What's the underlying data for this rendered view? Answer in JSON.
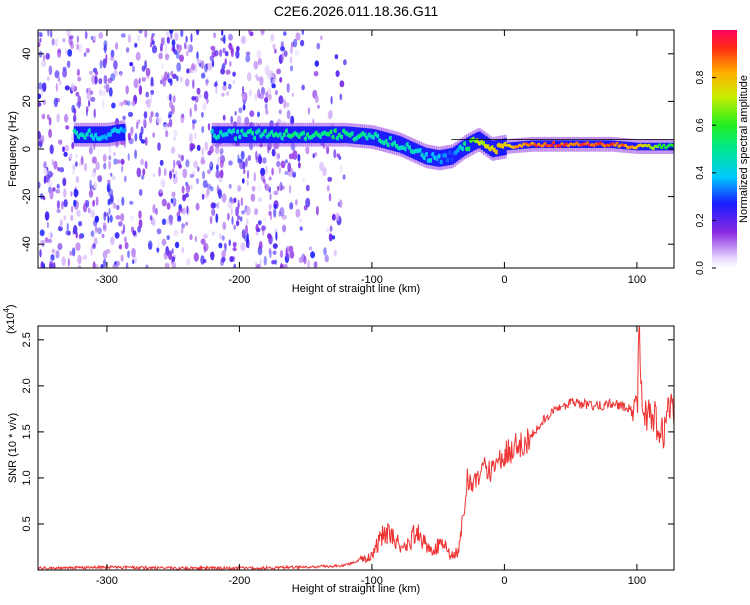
{
  "title": "C2E6.2026.011.18.36.G11",
  "colors": {
    "signal": "#ee3333",
    "sparse": "#8a2be2",
    "frame": "#000000"
  },
  "chart_data": [
    {
      "type": "heatmap",
      "xlabel": "Height of straight line (km)",
      "ylabel": "Frequency (Hz)",
      "xlim": [
        -352,
        128
      ],
      "ylim": [
        -50,
        50
      ],
      "x_ticks": [
        -300,
        -200,
        -100,
        0,
        100
      ],
      "x_tick_labels": [
        "-300",
        "-200",
        "-100",
        "0",
        "100"
      ],
      "y_ticks": [
        -40,
        -20,
        0,
        20,
        40
      ],
      "y_tick_labels": [
        "-40",
        "-20",
        "0",
        "20",
        "40"
      ],
      "colorbar": {
        "label": "Normalized spectral amplitude",
        "range": [
          0,
          1
        ],
        "ticks": [
          0.0,
          0.2,
          0.4,
          0.6,
          0.8
        ],
        "tick_labels": [
          "0.0",
          "0.2",
          "0.4",
          "0.6",
          "0.8"
        ]
      },
      "ridge": {
        "x": [
          -325,
          -300,
          -290,
          -220,
          -200,
          -150,
          -120,
          -100,
          -80,
          -60,
          -50,
          -40,
          -30,
          -20,
          -10,
          0,
          20,
          50,
          80,
          100,
          128
        ],
        "frequency": [
          6,
          6,
          7,
          6,
          6,
          6,
          6,
          5,
          2,
          -3,
          -4,
          -3,
          1,
          4,
          0,
          1,
          2,
          2,
          2,
          1,
          1
        ],
        "amplitude": [
          0.5,
          0.4,
          0.4,
          0.45,
          0.5,
          0.55,
          0.55,
          0.5,
          0.5,
          0.45,
          0.4,
          0.3,
          0.55,
          0.8,
          0.8,
          0.85,
          0.95,
          0.98,
          0.98,
          0.85,
          0.6
        ]
      },
      "noise_region": {
        "x": [
          -352,
          -120
        ],
        "amplitude_range": [
          0,
          0.25
        ]
      }
    },
    {
      "type": "line",
      "xlabel": "Height of straight line (km)",
      "ylabel": "SNR (10 * v/v)",
      "y_multiplier": "(x10",
      "y_multiplier_exp": "4",
      "xlim": [
        -352,
        128
      ],
      "ylim": [
        0,
        2.65
      ],
      "x_ticks": [
        -300,
        -200,
        -100,
        0,
        100
      ],
      "x_tick_labels": [
        "-300",
        "-200",
        "-100",
        "0",
        "100"
      ],
      "y_ticks": [
        0.5,
        1.0,
        1.5,
        2.0,
        2.5
      ],
      "y_tick_labels": [
        "0.5",
        "1.0",
        "1.5",
        "2.0",
        "2.5"
      ],
      "x": [
        -352,
        -300,
        -250,
        -200,
        -150,
        -120,
        -110,
        -100,
        -95,
        -90,
        -85,
        -80,
        -75,
        -70,
        -65,
        -60,
        -55,
        -50,
        -45,
        -40,
        -35,
        -30,
        -28,
        -25,
        -20,
        -15,
        -10,
        -5,
        0,
        10,
        20,
        30,
        40,
        50,
        60,
        70,
        80,
        90,
        95,
        100,
        102,
        105,
        110,
        115,
        120,
        125,
        128
      ],
      "y": [
        0.02,
        0.03,
        0.02,
        0.02,
        0.03,
        0.05,
        0.1,
        0.15,
        0.3,
        0.4,
        0.35,
        0.3,
        0.25,
        0.35,
        0.4,
        0.3,
        0.2,
        0.28,
        0.25,
        0.15,
        0.2,
        0.6,
        1.0,
        0.95,
        1.0,
        1.1,
        1.05,
        1.15,
        1.25,
        1.35,
        1.45,
        1.65,
        1.75,
        1.82,
        1.8,
        1.78,
        1.8,
        1.78,
        1.75,
        1.7,
        2.6,
        1.6,
        1.75,
        1.6,
        1.5,
        1.75,
        1.65
      ]
    }
  ]
}
